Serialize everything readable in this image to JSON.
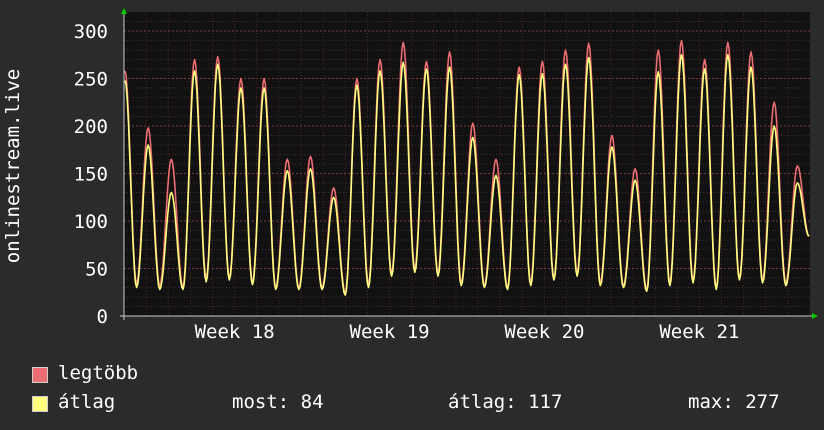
{
  "chart_data": {
    "type": "line",
    "ylabel": "onlinestream.live",
    "ylim": [
      0,
      320
    ],
    "yticks": [
      0,
      50,
      100,
      150,
      200,
      250,
      300
    ],
    "x_tick_labels": [
      "Week 18",
      "Week 19",
      "Week 20",
      "Week 21"
    ],
    "grid": true,
    "series": [
      {
        "name": "legtöbb",
        "color": "#ec6d72",
        "values": [
          258,
          34,
          198,
          32,
          165,
          30,
          270,
          40,
          273,
          40,
          250,
          36,
          250,
          30,
          165,
          30,
          168,
          30,
          135,
          24,
          250,
          34,
          270,
          45,
          288,
          50,
          268,
          45,
          278,
          35,
          203,
          32,
          165,
          30,
          262,
          35,
          268,
          40,
          280,
          45,
          287,
          35,
          190,
          32,
          155,
          28,
          280,
          35,
          290,
          38,
          270,
          30,
          288,
          40,
          278,
          38,
          225,
          35,
          158,
          84
        ]
      },
      {
        "name": "átlag",
        "color": "#ffff80",
        "values": [
          248,
          30,
          180,
          28,
          130,
          28,
          258,
          36,
          265,
          38,
          240,
          33,
          240,
          28,
          153,
          28,
          155,
          28,
          125,
          22,
          243,
          30,
          258,
          42,
          267,
          46,
          260,
          42,
          262,
          32,
          188,
          30,
          148,
          28,
          254,
          32,
          255,
          38,
          265,
          42,
          272,
          32,
          178,
          30,
          143,
          26,
          257,
          32,
          275,
          35,
          260,
          28,
          275,
          38,
          262,
          35,
          200,
          32,
          140,
          84
        ]
      }
    ],
    "stats": {
      "most_label": "most:",
      "most_value": "84",
      "atlag_label": "átlag:",
      "atlag_value": "117",
      "max_label": "max:",
      "max_value": "277"
    }
  }
}
